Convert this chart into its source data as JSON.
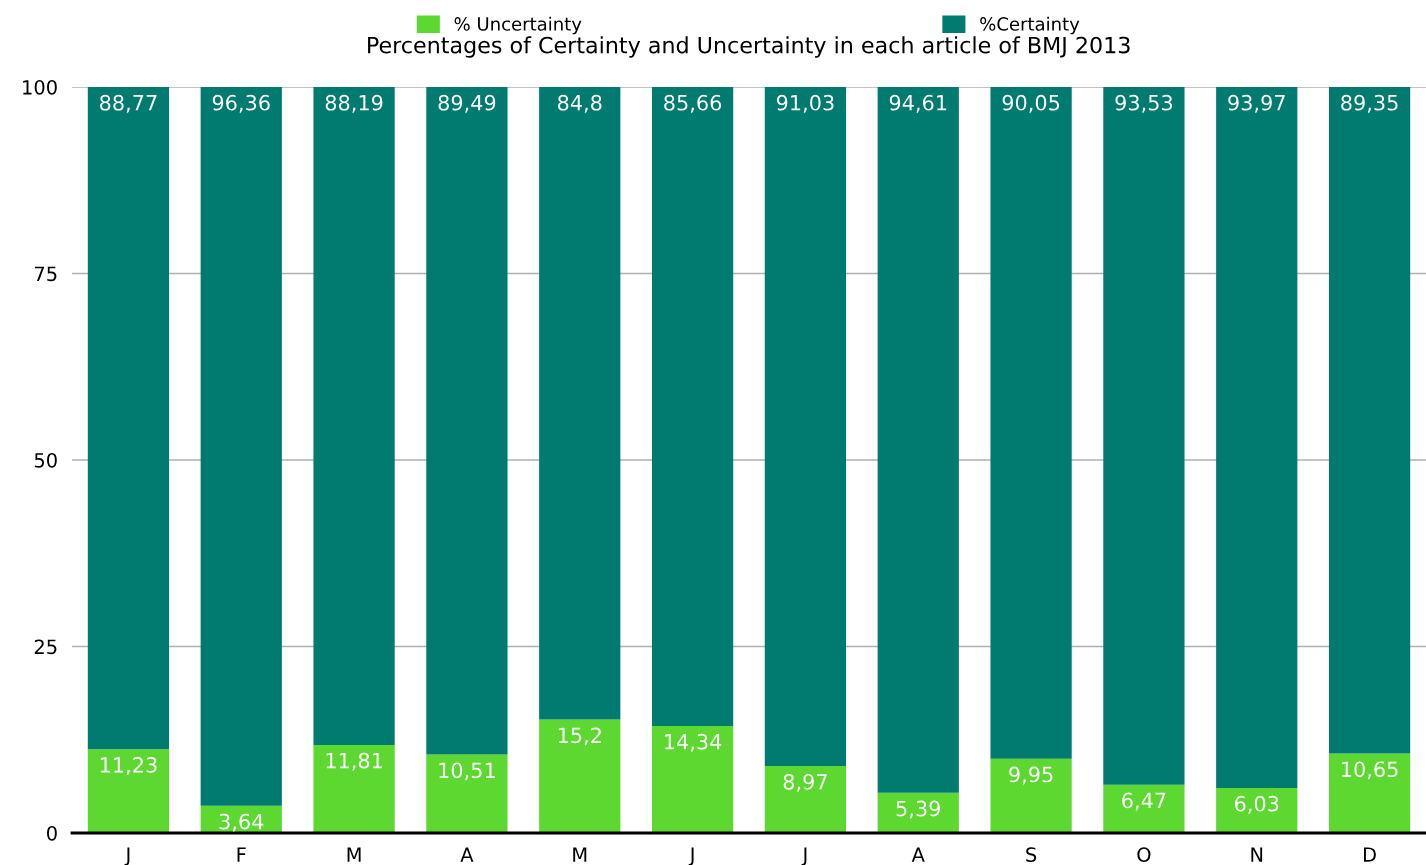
{
  "chart_data": {
    "type": "bar",
    "title": "Percentages of Certainty and Uncertainty in each article of BMJ 2013",
    "categories": [
      "J",
      "F",
      "M",
      "A",
      "M",
      "J",
      "J",
      "A",
      "S",
      "O",
      "N",
      "D"
    ],
    "stacked": true,
    "series": [
      {
        "name": "% Uncertainty",
        "color": "#5cd830",
        "values": [
          11.23,
          3.64,
          11.81,
          10.51,
          15.2,
          14.34,
          8.97,
          5.39,
          9.95,
          6.47,
          6.03,
          10.65
        ],
        "value_labels": [
          "11,23",
          "3,64",
          "11,81",
          "10,51",
          "15,2",
          "14,34",
          "8,97",
          "5,39",
          "9,95",
          "6,47",
          "6,03",
          "10,65"
        ]
      },
      {
        "name": "%Certainty",
        "color": "#017a6f",
        "values": [
          88.77,
          96.36,
          88.19,
          89.49,
          84.8,
          85.66,
          91.03,
          94.61,
          90.05,
          93.53,
          93.97,
          89.35
        ],
        "value_labels": [
          "88,77",
          "96,36",
          "88,19",
          "89,49",
          "84,8",
          "85,66",
          "91,03",
          "94,61",
          "90,05",
          "93,53",
          "93,97",
          "89,35"
        ]
      }
    ],
    "ylim": [
      0,
      100
    ],
    "yticks": [
      0,
      25,
      50,
      75,
      100
    ],
    "grid": "y",
    "legend": "top"
  }
}
